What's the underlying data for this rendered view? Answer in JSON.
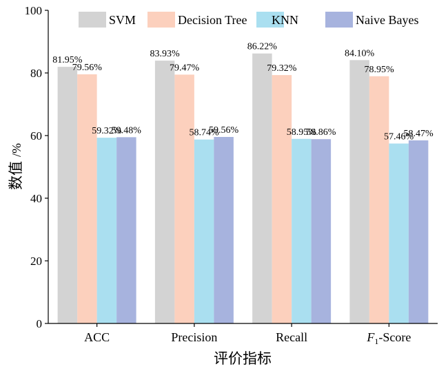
{
  "chart_data": {
    "type": "bar",
    "categories": [
      "ACC",
      "Precision",
      "Recall",
      "F1-Score"
    ],
    "category_labels": [
      {
        "main": "ACC"
      },
      {
        "main": "Precision"
      },
      {
        "main": "Recall"
      },
      {
        "italic": "F",
        "sub": "1",
        "main": "-Score"
      }
    ],
    "series": [
      {
        "name": "SVM",
        "color": "#d3d3d3",
        "values": [
          81.95,
          83.93,
          86.22,
          84.1
        ],
        "labels": [
          "81.95%",
          "83.93%",
          "86.22%",
          "84.10%"
        ]
      },
      {
        "name": "Decision Tree",
        "color": "#fcd0bd",
        "values": [
          79.56,
          79.47,
          79.32,
          78.95
        ],
        "labels": [
          "79.56%",
          "79.47%",
          "79.32%",
          "78.95%"
        ]
      },
      {
        "name": "KNN",
        "color": "#aadff0",
        "values": [
          59.32,
          58.74,
          58.95,
          57.46
        ],
        "labels": [
          "59.32%",
          "58.74%",
          "58.95%",
          "57.46%"
        ]
      },
      {
        "name": "Naive Bayes",
        "color": "#a7b3de",
        "values": [
          59.48,
          59.56,
          58.86,
          58.47
        ],
        "labels": [
          "59.48%",
          "59.56%",
          "58.86%",
          "58.47%"
        ]
      }
    ],
    "xlabel": "评价指标",
    "ylabel_main": "数值",
    "ylabel_unit": "/%",
    "ylim": [
      0,
      100
    ],
    "yticks": [
      0,
      20,
      40,
      60,
      80,
      100
    ],
    "grid": false,
    "legend_position": "top"
  }
}
